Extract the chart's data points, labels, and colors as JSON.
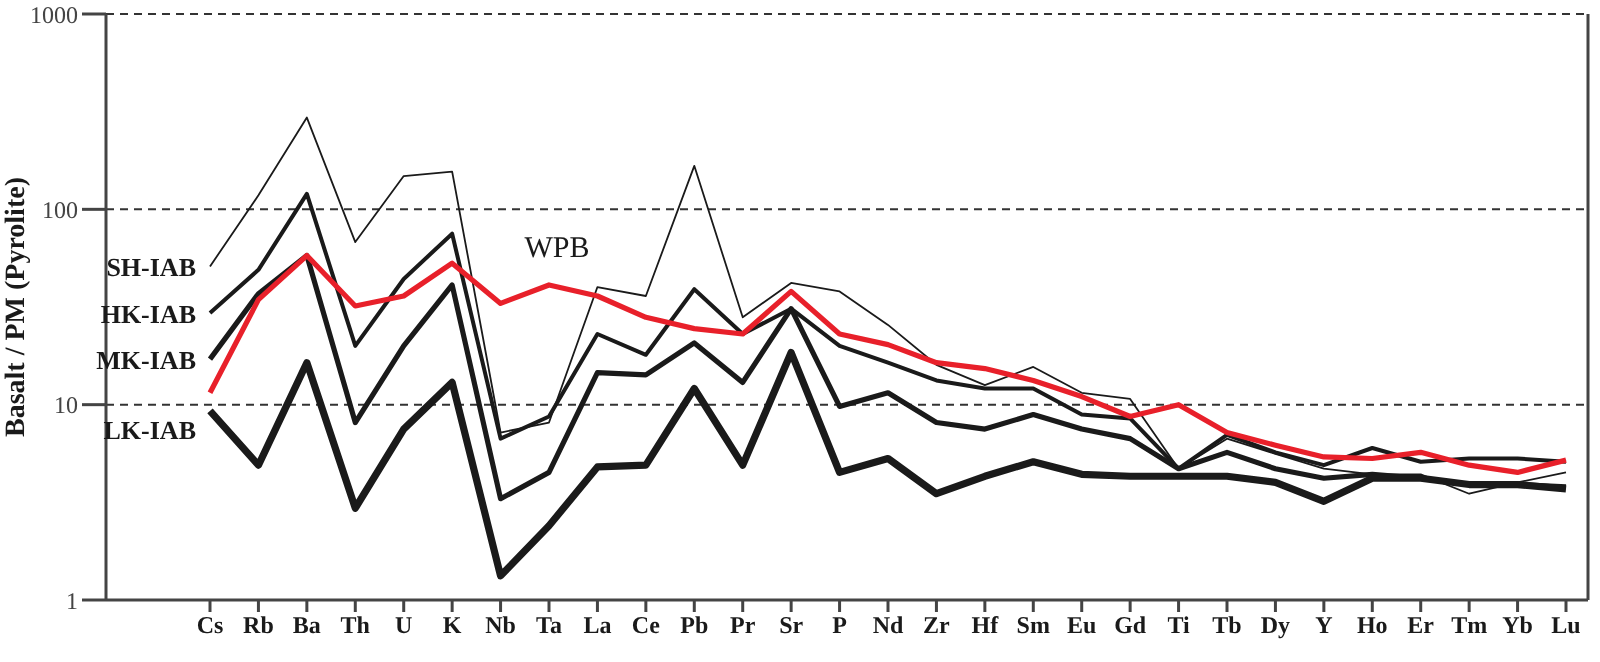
{
  "chart_data": {
    "type": "line",
    "ylabel": "Basalt / PM (Pyrolite)",
    "log": "y",
    "grid": "y",
    "legend": false,
    "marker": "none",
    "line_style": "solid",
    "categories": [
      "Cs",
      "Rb",
      "Ba",
      "Th",
      "U",
      "K",
      "Nb",
      "Ta",
      "La",
      "Ce",
      "Pb",
      "Pr",
      "Sr",
      "P",
      "Nd",
      "Zr",
      "Hf",
      "Sm",
      "Eu",
      "Gd",
      "Ti",
      "Tb",
      "Dy",
      "Y",
      "Ho",
      "Er",
      "Tm",
      "Yb",
      "Lu"
    ],
    "ylim": [
      1,
      1000
    ],
    "yticks": [
      1,
      10,
      100,
      1000
    ],
    "series": [
      {
        "name": "SH-IAB",
        "color": "#1a1a1a",
        "values": [
          51,
          118,
          295,
          68,
          148,
          156,
          7.2,
          8.1,
          40,
          36,
          167,
          28,
          42,
          38,
          25.6,
          16,
          12.6,
          15.6,
          11.5,
          10.7,
          4.7,
          6.7,
          5.6,
          4.7,
          4.4,
          4.4,
          3.5,
          4.0,
          4.5
        ]
      },
      {
        "name": "HK-IAB",
        "color": "#1a1a1a",
        "values": [
          29.5,
          49,
          120,
          20,
          44,
          75,
          6.7,
          8.7,
          23,
          18,
          39,
          23,
          31,
          20,
          16.4,
          13.3,
          12.1,
          12.1,
          8.9,
          8.5,
          4.7,
          7.0,
          5.7,
          4.9,
          6.0,
          5.1,
          5.3,
          5.3,
          5.1
        ]
      },
      {
        "name": "MK-IAB",
        "color": "#1a1a1a",
        "values": [
          17.1,
          37,
          58,
          8.1,
          20,
          41,
          3.3,
          4.5,
          14.6,
          14.2,
          20.7,
          13,
          31,
          9.8,
          11.5,
          8.1,
          7.5,
          8.9,
          7.5,
          6.7,
          4.7,
          5.7,
          4.7,
          4.2,
          4.4,
          4.2,
          3.9,
          3.9,
          3.8
        ]
      },
      {
        "name": "LK-IAB",
        "color": "#1a1a1a",
        "values": [
          9.3,
          4.9,
          16.4,
          2.95,
          7.5,
          13,
          1.33,
          2.4,
          4.8,
          4.9,
          12.1,
          4.9,
          18.5,
          4.5,
          5.3,
          3.5,
          4.3,
          5.1,
          4.4,
          4.3,
          4.3,
          4.3,
          4.0,
          3.2,
          4.2,
          4.2,
          3.9,
          3.9,
          3.7
        ]
      },
      {
        "name": "WPB",
        "color": "#e8202a",
        "values": [
          11.5,
          34.5,
          58,
          32,
          36,
          53,
          33,
          41,
          36,
          28,
          24.5,
          23,
          38,
          23,
          20.3,
          16.4,
          15.3,
          13.3,
          11,
          8.7,
          10,
          7.2,
          6.2,
          5.4,
          5.3,
          5.7,
          4.9,
          4.5,
          5.2
        ]
      }
    ]
  }
}
